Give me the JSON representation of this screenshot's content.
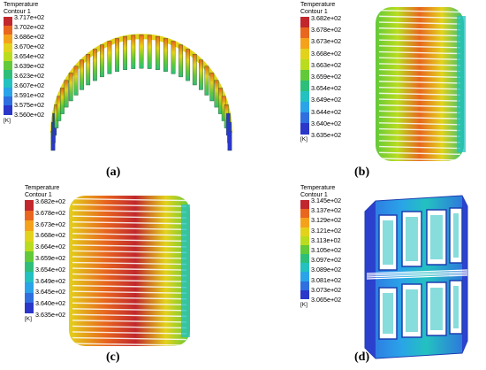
{
  "panels": [
    {
      "id": "a",
      "caption": "(a)",
      "legend_title": "Temperature",
      "legend_subtitle": "Contour 1",
      "labels": [
        "3.717e+02",
        "3.702e+02",
        "3.686e+02",
        "3.670e+02",
        "3.654e+02",
        "3.639e+02",
        "3.623e+02",
        "3.607e+02",
        "3.591e+02",
        "3.575e+02",
        "3.560e+02"
      ],
      "unit": "[K]"
    },
    {
      "id": "b",
      "caption": "(b)",
      "legend_title": "Temperature",
      "legend_subtitle": "Contour 1",
      "labels": [
        "3.682e+02",
        "3.678e+02",
        "3.673e+02",
        "3.668e+02",
        "3.663e+02",
        "3.659e+02",
        "3.654e+02",
        "3.649e+02",
        "3.644e+02",
        "3.640e+02",
        "3.635e+02"
      ],
      "unit": "[K]"
    },
    {
      "id": "c",
      "caption": "(c)",
      "legend_title": "Temperature",
      "legend_subtitle": "Contour 1",
      "labels": [
        "3.682e+02",
        "3.678e+02",
        "3.673e+02",
        "3.668e+02",
        "3.664e+02",
        "3.659e+02",
        "3.654e+02",
        "3.649e+02",
        "3.645e+02",
        "3.640e+02",
        "3.635e+02"
      ],
      "unit": "[K]"
    },
    {
      "id": "d",
      "caption": "(d)",
      "legend_title": "Temperature",
      "legend_subtitle": "Contour 1",
      "labels": [
        "3.145e+02",
        "3.137e+02",
        "3.129e+02",
        "3.121e+02",
        "3.113e+02",
        "3.105e+02",
        "3.097e+02",
        "3.089e+02",
        "3.081e+02",
        "3.073e+02",
        "3.065e+02"
      ],
      "unit": "[K]"
    }
  ],
  "colormap": [
    "#c1272d",
    "#e8661e",
    "#f4a21c",
    "#e3d21b",
    "#b9dc1f",
    "#62c93a",
    "#2dbf7a",
    "#23c1c0",
    "#2aa3e8",
    "#2f6fe0",
    "#2a37c9"
  ]
}
